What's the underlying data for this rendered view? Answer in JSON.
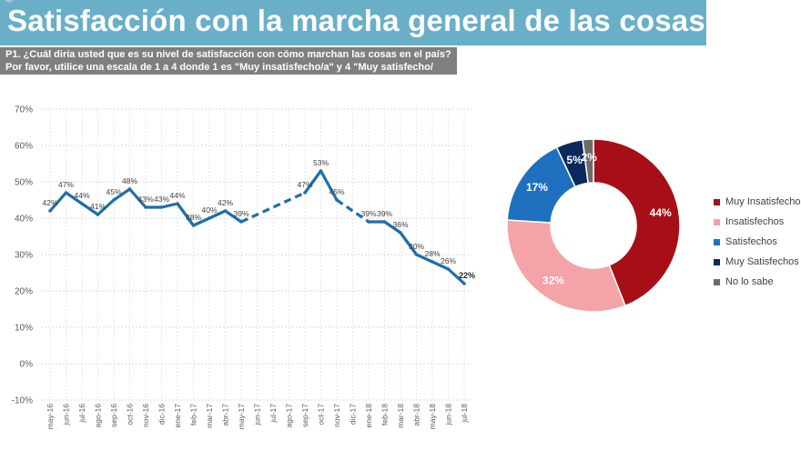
{
  "header": {
    "title": "Satisfacción con la marcha general de las cosas",
    "question_line1": "P1. ¿Cuál diría usted que es su nivel de satisfacción con cómo marchan las cosas en el país?",
    "question_line2": "Por favor, utilice una escala de 1 a 4 donde 1 es \"Muy insatisfecho/a\" y 4 \"Muy satisfecho/"
  },
  "colors": {
    "title_bar": "#6aafc8",
    "question_box": "#7f7f7f",
    "line": "#1f6fa8",
    "muy_insatisfechos": "#a50f15",
    "insatisfechos": "#f4a3a8",
    "satisfechos": "#1f6fbf",
    "muy_satisfechos": "#0b2a5c",
    "no_lo_sabe": "#6b6b6b"
  },
  "chart_data": [
    {
      "type": "line",
      "ylim": [
        -10,
        70
      ],
      "yticks": [
        "-10%",
        "0%",
        "10%",
        "20%",
        "30%",
        "40%",
        "50%",
        "60%",
        "70%"
      ],
      "grid": true,
      "categories": [
        "may-16",
        "jun-16",
        "jul-16",
        "ago-16",
        "sep-16",
        "oct-16",
        "nov-16",
        "dic-16",
        "ene-17",
        "feb-17",
        "mar-17",
        "abr-17",
        "may-17",
        "jun-17",
        "jul-17",
        "ago-17",
        "sep-17",
        "oct-17",
        "nov-17",
        "dic-17",
        "ene-18",
        "feb-18",
        "mar-18",
        "abr-18",
        "may-18",
        "jun-18",
        "jul-18"
      ],
      "values": [
        42,
        47,
        44,
        41,
        45,
        48,
        43,
        43,
        44,
        38,
        40,
        42,
        39,
        null,
        null,
        null,
        47,
        53,
        45,
        null,
        39,
        39,
        36,
        30,
        28,
        26,
        22
      ],
      "labels": [
        "42%",
        "47%",
        "44%",
        "41%",
        "45%",
        "48%",
        "43%",
        "43%",
        "44%",
        "38%",
        "40%",
        "42%",
        "39%",
        "",
        "",
        "",
        "47%",
        "53%",
        "45%",
        "",
        "39%",
        "39%",
        "36%",
        "30%",
        "28%",
        "26%",
        "22%"
      ],
      "dashed_gap": {
        "from": "may-17",
        "to": "sep-17"
      }
    },
    {
      "type": "pie",
      "style": "donut",
      "slices": [
        {
          "name": "Muy Insatisfechos",
          "value": 44,
          "label": "44%"
        },
        {
          "name": "Insatisfechos",
          "value": 32,
          "label": "32%"
        },
        {
          "name": "Satisfechos",
          "value": 17,
          "label": "17%"
        },
        {
          "name": "Muy Satisfechos",
          "value": 5,
          "label": "5%"
        },
        {
          "name": "No lo sabe",
          "value": 2,
          "label": "2%"
        }
      ],
      "legend_position": "right"
    }
  ]
}
